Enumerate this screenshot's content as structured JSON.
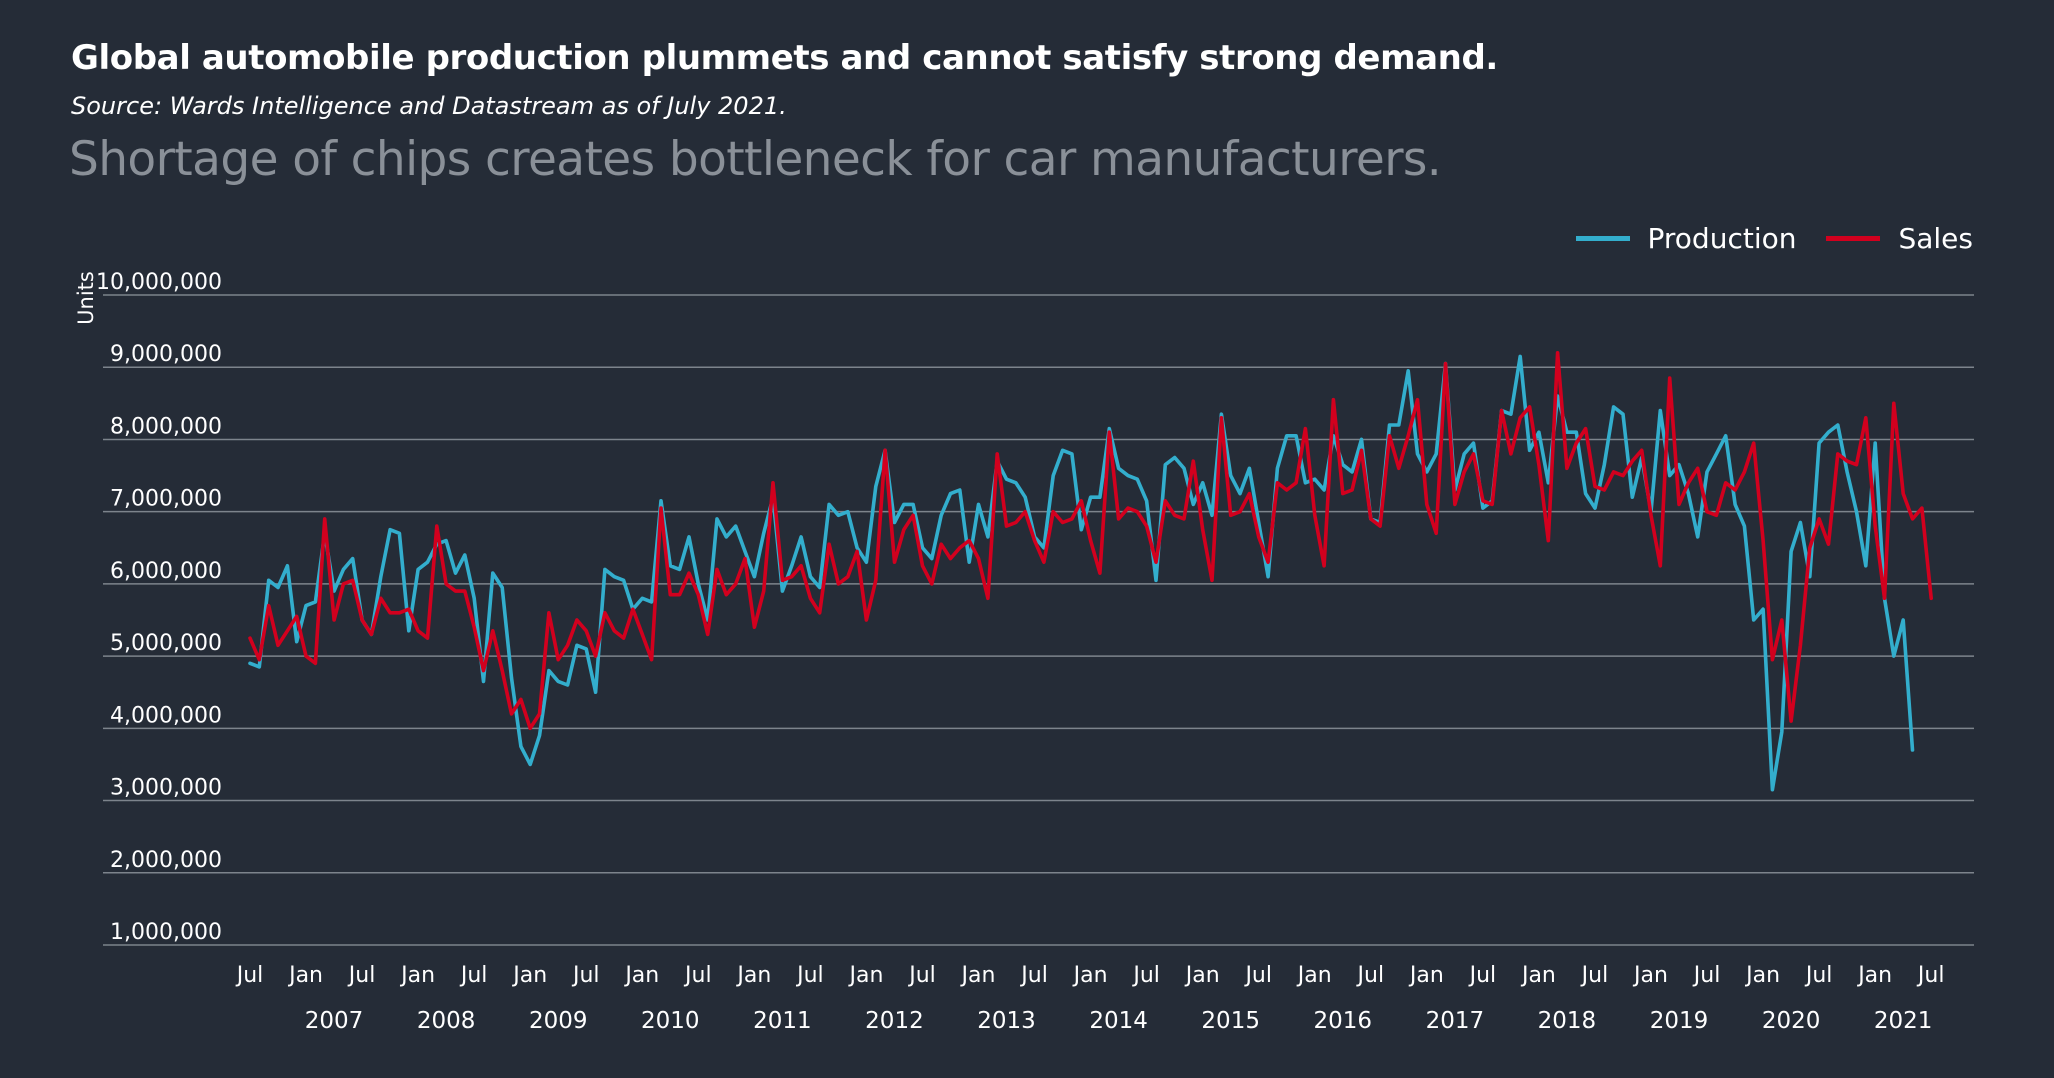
{
  "header": {
    "title": "Global automobile production plummets and cannot satisfy strong demand.",
    "source": "Source: Wards Intelligence and Datastream as of July 2021.",
    "subtitle": "Shortage of chips creates bottleneck for car manufacturers."
  },
  "colors": {
    "background": "#252c37",
    "production": "#33aecd",
    "sales": "#d2001e",
    "grid": "#7d848c",
    "axis_text": "#ffffff"
  },
  "chart_data": {
    "type": "line",
    "title": "Global automobile production plummets and cannot satisfy strong demand.",
    "subtitle": "Shortage of chips creates bottleneck for car manufacturers.",
    "ylabel": "Units",
    "ylim": [
      1000000,
      10000000
    ],
    "yticks": [
      1000000,
      2000000,
      3000000,
      4000000,
      5000000,
      6000000,
      7000000,
      8000000,
      9000000,
      10000000
    ],
    "ytick_labels": [
      "1,000,000",
      "2,000,000",
      "3,000,000",
      "4,000,000",
      "5,000,000",
      "6,000,000",
      "7,000,000",
      "8,000,000",
      "9,000,000",
      "10,000,000"
    ],
    "grid": true,
    "legend_position": "top-right",
    "x_start": "2006-07",
    "x_end": "2021-07",
    "x_tick_labels": [
      "Jul",
      "Jan",
      "Jul",
      "Jan",
      "Jul",
      "Jan",
      "Jul",
      "Jan",
      "Jul",
      "Jan",
      "Jul",
      "Jan",
      "Jul",
      "Jan",
      "Jul",
      "Jan",
      "Jul",
      "Jan",
      "Jul",
      "Jan",
      "Jul",
      "Jan",
      "Jul",
      "Jan",
      "Jul",
      "Jan",
      "Jul",
      "Jan",
      "Jul",
      "Jan",
      "Jul"
    ],
    "year_labels": [
      "2007",
      "2008",
      "2009",
      "2010",
      "2011",
      "2012",
      "2013",
      "2014",
      "2015",
      "2016",
      "2017",
      "2018",
      "2019",
      "2020",
      "2021"
    ],
    "series": [
      {
        "name": "Production",
        "values": [
          4900000,
          4850000,
          6050000,
          5950000,
          6250000,
          5200000,
          5700000,
          5750000,
          6700000,
          5900000,
          6200000,
          6350000,
          5500000,
          5300000,
          6100000,
          6750000,
          6700000,
          5350000,
          6200000,
          6300000,
          6550000,
          6600000,
          6150000,
          6400000,
          5800000,
          4650000,
          6150000,
          5950000,
          4700000,
          3750000,
          3500000,
          3900000,
          4800000,
          4650000,
          4600000,
          5150000,
          5100000,
          4500000,
          6200000,
          6100000,
          6050000,
          5650000,
          5800000,
          5750000,
          7150000,
          6250000,
          6200000,
          6650000,
          6000000,
          5500000,
          6900000,
          6650000,
          6800000,
          6450000,
          6100000,
          6700000,
          7200000,
          5900000,
          6250000,
          6650000,
          6100000,
          5950000,
          7100000,
          6950000,
          7000000,
          6500000,
          6300000,
          7350000,
          7850000,
          6850000,
          7100000,
          7100000,
          6500000,
          6350000,
          6950000,
          7250000,
          7300000,
          6300000,
          7100000,
          6650000,
          7700000,
          7450000,
          7400000,
          7200000,
          6650000,
          6500000,
          7500000,
          7850000,
          7800000,
          6750000,
          7200000,
          7200000,
          8150000,
          7600000,
          7500000,
          7450000,
          7150000,
          6050000,
          7650000,
          7750000,
          7600000,
          7100000,
          7400000,
          6950000,
          8350000,
          7500000,
          7250000,
          7600000,
          6850000,
          6100000,
          7600000,
          8050000,
          8050000,
          7400000,
          7450000,
          7300000,
          8050000,
          7650000,
          7550000,
          8000000,
          6900000,
          6850000,
          8200000,
          8200000,
          8950000,
          7800000,
          7550000,
          7800000,
          9050000,
          7300000,
          7800000,
          7950000,
          7050000,
          7150000,
          8400000,
          8350000,
          9150000,
          7850000,
          8100000,
          7400000,
          8600000,
          8100000,
          8100000,
          7250000,
          7050000,
          7650000,
          8450000,
          8350000,
          7200000,
          7750000,
          7000000,
          8400000,
          7500000,
          7650000,
          7250000,
          6650000,
          7550000,
          7800000,
          8050000,
          7100000,
          6800000,
          5500000,
          5650000,
          3150000,
          3950000,
          6450000,
          6850000,
          6100000,
          7950000,
          8100000,
          8200000,
          7550000,
          7000000,
          6250000,
          7950000,
          5800000,
          5000000,
          5500000,
          3700000
        ]
      },
      {
        "name": "Sales",
        "values": [
          5250000,
          4950000,
          5700000,
          5150000,
          5350000,
          5550000,
          5000000,
          4900000,
          6900000,
          5500000,
          6000000,
          6050000,
          5500000,
          5300000,
          5800000,
          5600000,
          5600000,
          5650000,
          5350000,
          5250000,
          6800000,
          6000000,
          5900000,
          5900000,
          5400000,
          4800000,
          5350000,
          4800000,
          4200000,
          4400000,
          4000000,
          4200000,
          5600000,
          4950000,
          5150000,
          5500000,
          5350000,
          5000000,
          5600000,
          5350000,
          5250000,
          5650000,
          5300000,
          4950000,
          7050000,
          5850000,
          5850000,
          6150000,
          5850000,
          5300000,
          6200000,
          5850000,
          6000000,
          6350000,
          5400000,
          5900000,
          7400000,
          6050000,
          6100000,
          6250000,
          5800000,
          5600000,
          6550000,
          6000000,
          6100000,
          6450000,
          5500000,
          6050000,
          7850000,
          6300000,
          6750000,
          6950000,
          6250000,
          6000000,
          6550000,
          6350000,
          6500000,
          6600000,
          6350000,
          5800000,
          7800000,
          6800000,
          6850000,
          7000000,
          6600000,
          6300000,
          7000000,
          6850000,
          6900000,
          7150000,
          6600000,
          6150000,
          8100000,
          6900000,
          7050000,
          7000000,
          6800000,
          6300000,
          7150000,
          6950000,
          6900000,
          7700000,
          6750000,
          6050000,
          8300000,
          6950000,
          7000000,
          7250000,
          6650000,
          6300000,
          7400000,
          7300000,
          7400000,
          8150000,
          6950000,
          6250000,
          8550000,
          7250000,
          7300000,
          7850000,
          6900000,
          6800000,
          8050000,
          7600000,
          8050000,
          8550000,
          7100000,
          6700000,
          9050000,
          7100000,
          7550000,
          7800000,
          7150000,
          7100000,
          8400000,
          7800000,
          8300000,
          8450000,
          7650000,
          6600000,
          9200000,
          7600000,
          7950000,
          8150000,
          7350000,
          7300000,
          7550000,
          7500000,
          7700000,
          7850000,
          6950000,
          6250000,
          8850000,
          7100000,
          7400000,
          7600000,
          7000000,
          6950000,
          7400000,
          7300000,
          7550000,
          7950000,
          6600000,
          4950000,
          5500000,
          4100000,
          5150000,
          6500000,
          6900000,
          6550000,
          7800000,
          7700000,
          7650000,
          8300000,
          6800000,
          5800000,
          8500000,
          7250000,
          6900000,
          7050000,
          5800000
        ]
      }
    ]
  }
}
